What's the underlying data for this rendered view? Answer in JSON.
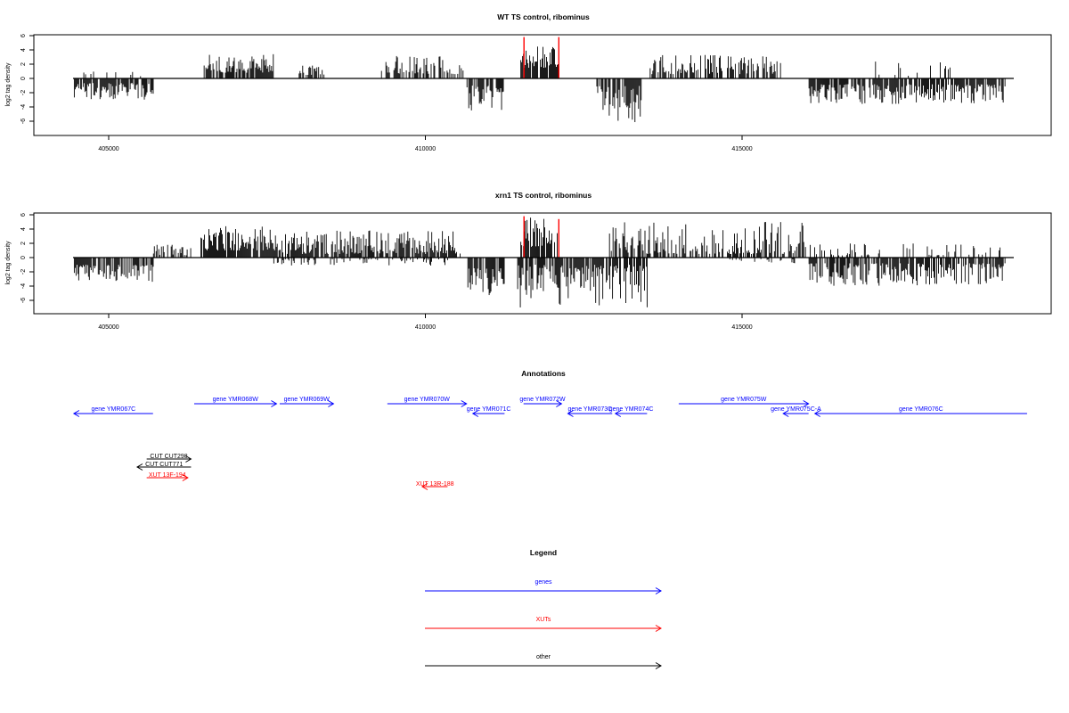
{
  "colors": {
    "gene": "#0000ff",
    "xut": "#ff0000",
    "other": "#000000",
    "peak": "#ff0000"
  },
  "chart_data": [
    {
      "type": "bar",
      "title": "WT TS control, ribominus",
      "ylabel": "log2 tag density",
      "ylim": [
        -6.5,
        6.5
      ],
      "yticks": [
        6,
        4,
        2,
        0,
        -2,
        -4,
        -6
      ],
      "xlim": [
        403800,
        419500
      ],
      "xticks": [
        405000,
        410000,
        415000
      ],
      "xtick_labels": [
        "405000",
        "410000",
        "415000"
      ],
      "regions": [
        {
          "start": 404450,
          "end": 405700,
          "sign": -1,
          "min": 0.6,
          "max": 3.0
        },
        {
          "start": 404600,
          "end": 405500,
          "sign": 1,
          "min": 0.3,
          "max": 1.0,
          "density": 0.15
        },
        {
          "start": 406500,
          "end": 407600,
          "sign": 1,
          "min": 0.8,
          "max": 3.4
        },
        {
          "start": 408000,
          "end": 408400,
          "sign": 1,
          "min": 0.5,
          "max": 1.8,
          "density": 0.5
        },
        {
          "start": 409300,
          "end": 410600,
          "sign": 1,
          "min": 0.6,
          "max": 3.2,
          "density": 0.5
        },
        {
          "start": 410650,
          "end": 411250,
          "sign": -1,
          "min": 1.0,
          "max": 4.5
        },
        {
          "start": 411500,
          "end": 412100,
          "sign": 1,
          "min": 1.5,
          "max": 4.6
        },
        {
          "start": 412700,
          "end": 413400,
          "sign": -1,
          "min": 1.0,
          "max": 6.2
        },
        {
          "start": 413500,
          "end": 415600,
          "sign": 1,
          "min": 0.6,
          "max": 3.3,
          "density": 0.55
        },
        {
          "start": 416050,
          "end": 419150,
          "sign": -1,
          "min": 0.8,
          "max": 3.6
        },
        {
          "start": 417100,
          "end": 418300,
          "sign": 1,
          "min": 0.3,
          "max": 2.6,
          "density": 0.12
        }
      ],
      "peaks": [
        {
          "x": 411550,
          "y": 5.8
        },
        {
          "x": 412100,
          "y": 5.8
        }
      ]
    },
    {
      "type": "bar",
      "title": "xrn1 TS control, ribominus",
      "ylabel": "log2 tag density",
      "ylim": [
        -6.5,
        6.5
      ],
      "yticks": [
        6,
        4,
        2,
        0,
        -2,
        -4,
        -6
      ],
      "xlim": [
        403800,
        419500
      ],
      "xticks": [
        405000,
        410000,
        415000
      ],
      "xtick_labels": [
        "405000",
        "410000",
        "415000"
      ],
      "regions": [
        {
          "start": 404450,
          "end": 405700,
          "sign": -1,
          "min": 1.0,
          "max": 3.4
        },
        {
          "start": 405700,
          "end": 406300,
          "sign": 1,
          "min": 0.3,
          "max": 1.8,
          "density": 0.4
        },
        {
          "start": 406450,
          "end": 407700,
          "sign": 1,
          "min": 1.0,
          "max": 4.4
        },
        {
          "start": 407700,
          "end": 410550,
          "sign": 1,
          "min": 0.5,
          "max": 3.8
        },
        {
          "start": 407600,
          "end": 410400,
          "sign": -1,
          "min": 0.2,
          "max": 1.2,
          "density": 0.25
        },
        {
          "start": 410650,
          "end": 411250,
          "sign": -1,
          "min": 1.5,
          "max": 5.5
        },
        {
          "start": 411500,
          "end": 412100,
          "sign": 1,
          "min": 1.5,
          "max": 5.8
        },
        {
          "start": 411450,
          "end": 413500,
          "sign": -1,
          "min": 1.0,
          "max": 7.0
        },
        {
          "start": 412900,
          "end": 416000,
          "sign": 1,
          "min": 0.5,
          "max": 5.0,
          "density": 0.6
        },
        {
          "start": 414800,
          "end": 415900,
          "sign": -1,
          "min": 0.2,
          "max": 0.8,
          "density": 0.2
        },
        {
          "start": 416050,
          "end": 419150,
          "sign": -1,
          "min": 0.8,
          "max": 4.0
        },
        {
          "start": 416000,
          "end": 419100,
          "sign": 1,
          "min": 0.3,
          "max": 2.0,
          "density": 0.25
        }
      ],
      "peaks": [
        {
          "x": 411550,
          "y": 5.8
        },
        {
          "x": 412100,
          "y": 5.4
        }
      ]
    }
  ],
  "annotations": {
    "title": "Annotations",
    "features": [
      {
        "label": "gene YMR067C",
        "type": "gene",
        "strand": "-",
        "start": 404450,
        "end": 405700,
        "row": 1
      },
      {
        "label": "gene YMR068W",
        "type": "gene",
        "strand": "+",
        "start": 406350,
        "end": 407650,
        "row": 0
      },
      {
        "label": "gene YMR069W",
        "type": "gene",
        "strand": "+",
        "start": 407700,
        "end": 408550,
        "row": 0
      },
      {
        "label": "gene YMR070W",
        "type": "gene",
        "strand": "+",
        "start": 409400,
        "end": 410650,
        "row": 0
      },
      {
        "label": "gene YMR071C",
        "type": "gene",
        "strand": "-",
        "start": 410750,
        "end": 411250,
        "row": 1
      },
      {
        "label": "gene YMR072W",
        "type": "gene",
        "strand": "+",
        "start": 411550,
        "end": 412150,
        "row": 0
      },
      {
        "label": "gene YMR073C",
        "type": "gene",
        "strand": "-",
        "start": 412250,
        "end": 412950,
        "row": 1
      },
      {
        "label": "gene YMR074C",
        "type": "gene",
        "strand": "-",
        "start": 413000,
        "end": 413500,
        "row": 1
      },
      {
        "label": "gene YMR075W",
        "type": "gene",
        "strand": "+",
        "start": 414000,
        "end": 416050,
        "row": 0
      },
      {
        "label": "gene YMR075C-A",
        "type": "gene",
        "strand": "-",
        "start": 415650,
        "end": 416050,
        "row": 1
      },
      {
        "label": "gene YMR076C",
        "type": "gene",
        "strand": "-",
        "start": 416150,
        "end": 419500,
        "row": 1
      }
    ],
    "small": [
      {
        "label": "CUT CUT298",
        "color": "other",
        "strand": "+",
        "start": 405600,
        "end": 406300,
        "y": 515
      },
      {
        "label": "CUT CUT771",
        "color": "other",
        "strand": "-",
        "start": 405450,
        "end": 406300,
        "y": 524
      },
      {
        "label": "XUT 13F-194",
        "color": "xut",
        "strand": "+",
        "start": 405600,
        "end": 406250,
        "y": 536
      },
      {
        "label": "XUT 13R-188",
        "color": "xut",
        "strand": "-",
        "start": 409950,
        "end": 410350,
        "y": 546
      }
    ]
  },
  "legend": {
    "title": "Legend",
    "items": [
      {
        "label": "genes",
        "color": "gene"
      },
      {
        "label": "XUTs",
        "color": "xut"
      },
      {
        "label": "other",
        "color": "other"
      }
    ]
  }
}
